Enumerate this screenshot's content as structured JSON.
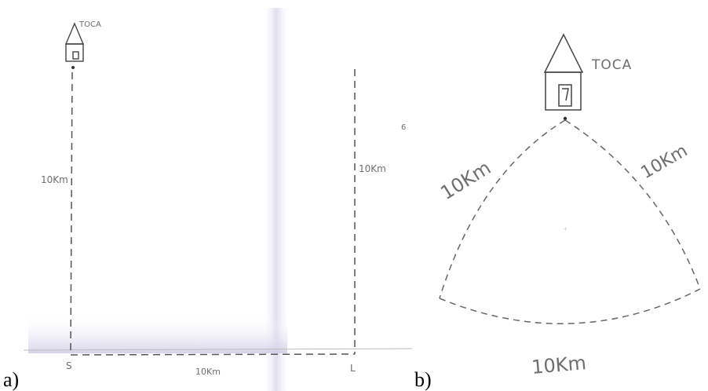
{
  "panels": [
    {
      "label": "a)",
      "house_label": "TOCA",
      "left_side_label": "10Km",
      "right_side_label": "10Km",
      "bottom_label": "10Km",
      "corner_left": "S",
      "corner_right": "L",
      "margin_mark": "6"
    },
    {
      "label": "b)",
      "house_label": "TOCA",
      "left_side_label": "10Km",
      "right_side_label": "10Km",
      "bottom_label": "10Km"
    }
  ]
}
